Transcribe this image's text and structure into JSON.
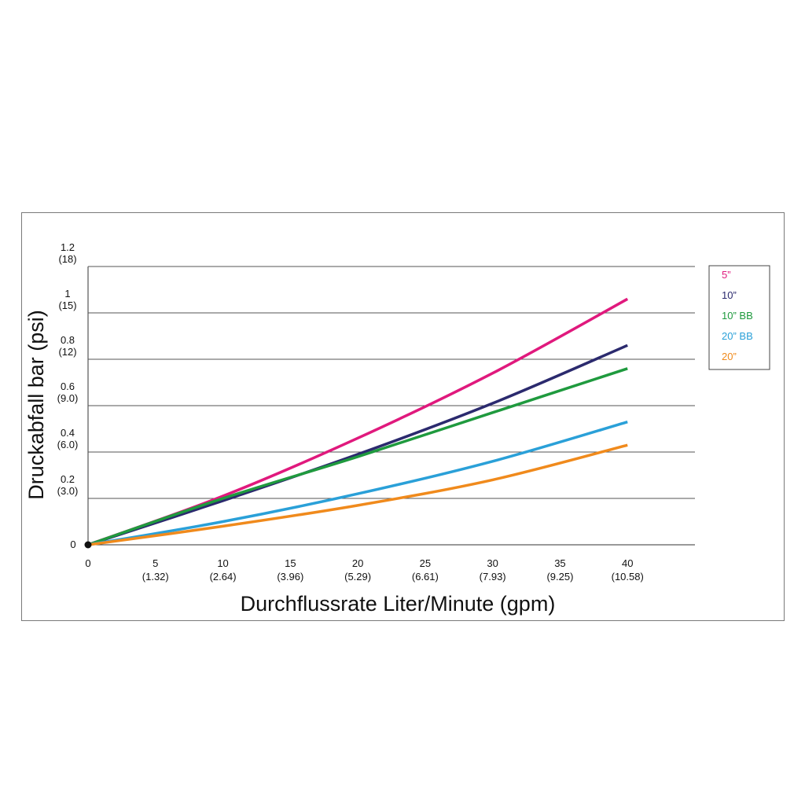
{
  "chart_data": {
    "type": "line",
    "title": "",
    "xlabel": "Durchflussrate Liter/Minute (gpm)",
    "ylabel": "Druckabfall bar (psi)",
    "xlim": [
      0,
      45
    ],
    "ylim": [
      0,
      1.2
    ],
    "grid": true,
    "legend_position": "right",
    "x_ticks": [
      {
        "value": 0,
        "label": "0",
        "sub": ""
      },
      {
        "value": 5,
        "label": "5",
        "sub": "(1.32)"
      },
      {
        "value": 10,
        "label": "10",
        "sub": "(2.64)"
      },
      {
        "value": 15,
        "label": "15",
        "sub": "(3.96)"
      },
      {
        "value": 20,
        "label": "20",
        "sub": "(5.29)"
      },
      {
        "value": 25,
        "label": "25",
        "sub": "(6.61)"
      },
      {
        "value": 30,
        "label": "30",
        "sub": "(7.93)"
      },
      {
        "value": 35,
        "label": "35",
        "sub": "(9.25)"
      },
      {
        "value": 40,
        "label": "40",
        "sub": "(10.58)"
      }
    ],
    "y_ticks": [
      {
        "value": 0,
        "label": "0",
        "sub": ""
      },
      {
        "value": 0.2,
        "label": "0.2",
        "sub": "(3.0)"
      },
      {
        "value": 0.4,
        "label": "0.4",
        "sub": "(6.0)"
      },
      {
        "value": 0.6,
        "label": "0.6",
        "sub": "(9.0)"
      },
      {
        "value": 0.8,
        "label": "0.8",
        "sub": "(12)"
      },
      {
        "value": 1,
        "label": "1",
        "sub": "(15)"
      },
      {
        "value": 1.2,
        "label": "1.2",
        "sub": "(18)"
      }
    ],
    "series": [
      {
        "name": "5”",
        "color": "#e0197d",
        "x": [
          0,
          10,
          20,
          30,
          40
        ],
        "y": [
          0,
          0.21,
          0.46,
          0.74,
          1.06
        ]
      },
      {
        "name": "10”",
        "color": "#2b2a6e",
        "x": [
          0,
          10,
          20,
          30,
          40
        ],
        "y": [
          0,
          0.19,
          0.39,
          0.61,
          0.86
        ]
      },
      {
        "name": "10” BB",
        "color": "#1f9a3e",
        "x": [
          0,
          10,
          20,
          30,
          40
        ],
        "y": [
          0,
          0.2,
          0.38,
          0.57,
          0.76
        ]
      },
      {
        "name": "20” BB",
        "color": "#2aa0d8",
        "x": [
          0,
          10,
          20,
          30,
          40
        ],
        "y": [
          0,
          0.1,
          0.22,
          0.36,
          0.53
        ]
      },
      {
        "name": "20”",
        "color": "#f08a1c",
        "x": [
          0,
          10,
          20,
          30,
          40
        ],
        "y": [
          0,
          0.08,
          0.17,
          0.28,
          0.43
        ]
      }
    ]
  }
}
